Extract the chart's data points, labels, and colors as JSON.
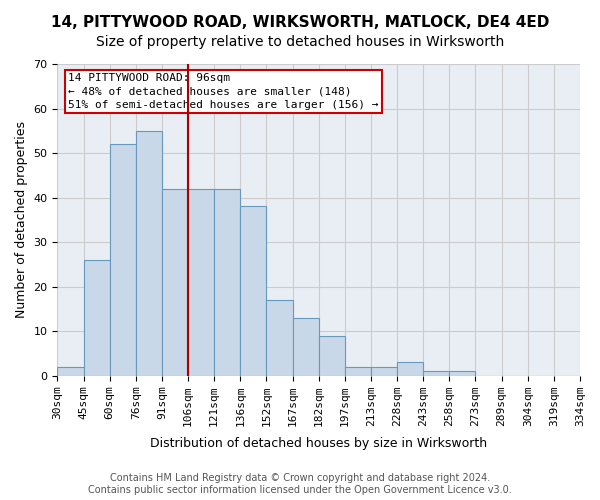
{
  "title_line1": "14, PITTYWOOD ROAD, WIRKSWORTH, MATLOCK, DE4 4ED",
  "title_line2": "Size of property relative to detached houses in Wirksworth",
  "xlabel": "Distribution of detached houses by size in Wirksworth",
  "ylabel": "Number of detached properties",
  "bar_values": [
    2,
    26,
    52,
    55,
    42,
    42,
    42,
    38,
    17,
    13,
    9,
    2,
    2,
    3,
    1,
    1,
    0,
    0,
    0,
    0
  ],
  "categories": [
    "30sqm",
    "45sqm",
    "60sqm",
    "76sqm",
    "91sqm",
    "106sqm",
    "121sqm",
    "136sqm",
    "152sqm",
    "167sqm",
    "182sqm",
    "197sqm",
    "213sqm",
    "228sqm",
    "243sqm",
    "258sqm",
    "273sqm",
    "289sqm",
    "304sqm",
    "319sqm",
    "334sqm"
  ],
  "bar_color": "#c8d8e8",
  "bar_edge_color": "#6699bb",
  "vline_x": 4.5,
  "vline_color": "#aa0000",
  "annotation_text": "14 PITTYWOOD ROAD: 96sqm\n← 48% of detached houses are smaller (148)\n51% of semi-detached houses are larger (156) →",
  "annotation_box_color": "#ffffff",
  "annotation_box_edge": "#cc0000",
  "ylim": [
    0,
    70
  ],
  "yticks": [
    0,
    10,
    20,
    30,
    40,
    50,
    60,
    70
  ],
  "grid_color": "#cccccc",
  "bg_color": "#e8eef4",
  "footer_line1": "Contains HM Land Registry data © Crown copyright and database right 2024.",
  "footer_line2": "Contains public sector information licensed under the Open Government Licence v3.0.",
  "title_fontsize": 11,
  "subtitle_fontsize": 10,
  "axis_label_fontsize": 9,
  "tick_fontsize": 8,
  "annotation_fontsize": 8,
  "footer_fontsize": 7
}
